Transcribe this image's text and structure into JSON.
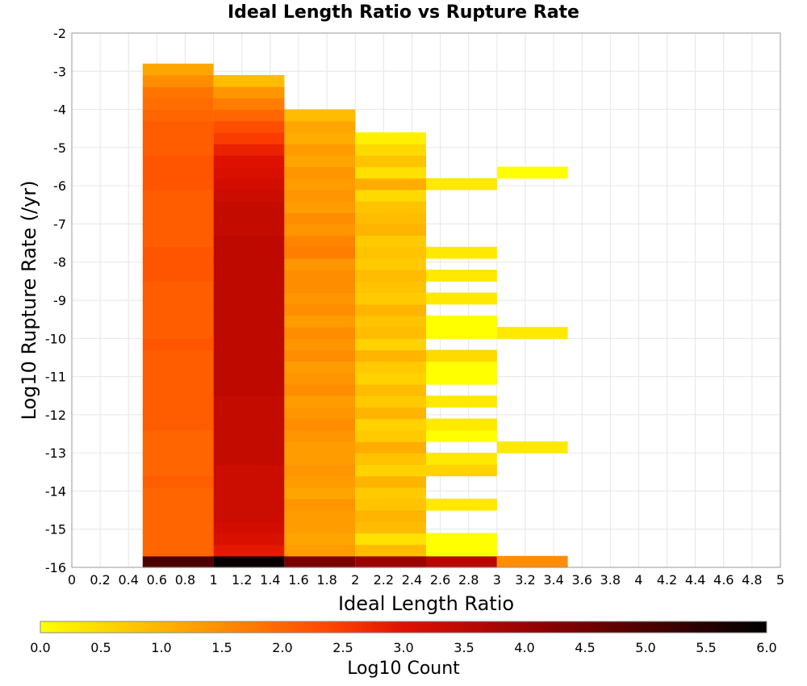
{
  "chart_data": {
    "type": "heatmap",
    "title": "Ideal Length Ratio vs Rupture Rate",
    "xlabel": "Ideal Length Ratio",
    "ylabel": "Log10 Rupture Rate (/yr)",
    "xlim": [
      0,
      5
    ],
    "ylim": [
      -16,
      -2
    ],
    "x_ticks": [
      "0",
      "0.2",
      "0.4",
      "0.6",
      "0.8",
      "1",
      "1.2",
      "1.4",
      "1.6",
      "1.8",
      "2",
      "2.2",
      "2.4",
      "2.6",
      "2.8",
      "3",
      "3.2",
      "3.4",
      "3.6",
      "3.8",
      "4",
      "4.2",
      "4.4",
      "4.6",
      "4.8",
      "5"
    ],
    "y_ticks": [
      "-2",
      "-3",
      "-4",
      "-5",
      "-6",
      "-7",
      "-8",
      "-9",
      "-10",
      "-11",
      "-12",
      "-13",
      "-14",
      "-15",
      "-16"
    ],
    "grid": true,
    "x_bin_width": 0.5,
    "y_bin_height": 0.3,
    "colorscale": {
      "label": "Log10 Count",
      "min": 0,
      "max": 6,
      "ticks": [
        "0.0",
        "0.5",
        "1.0",
        "1.5",
        "2.0",
        "2.5",
        "3.0",
        "3.5",
        "4.0",
        "4.5",
        "5.0",
        "5.5",
        "6.0"
      ],
      "stops": [
        "#ffff00",
        "#ffa500",
        "#ff4500",
        "#e01000",
        "#8b0000",
        "#000000"
      ]
    },
    "columns": [
      {
        "x": 0.75,
        "y_start": -16.0,
        "values": [
          5.0,
          2.0,
          2.0,
          2.0,
          2.0,
          2.0,
          2.0,
          2.1,
          2.0,
          2.0,
          2.0,
          2.0,
          2.1,
          2.1,
          2.1,
          2.1,
          2.1,
          2.1,
          2.1,
          2.2,
          2.1,
          2.1,
          2.1,
          2.1,
          2.1,
          2.2,
          2.2,
          2.2,
          2.1,
          2.1,
          2.1,
          2.1,
          2.1,
          2.2,
          2.2,
          2.2,
          2.1,
          2.1,
          2.1,
          2.0,
          1.9,
          1.8,
          1.5,
          1.2
        ]
      },
      {
        "x": 1.25,
        "y_start": -16.0,
        "values": [
          5.9,
          2.9,
          3.1,
          3.2,
          3.3,
          3.3,
          3.3,
          3.3,
          3.3,
          3.4,
          3.4,
          3.4,
          3.4,
          3.4,
          3.4,
          3.5,
          3.5,
          3.5,
          3.5,
          3.5,
          3.5,
          3.5,
          3.5,
          3.5,
          3.5,
          3.5,
          3.5,
          3.5,
          3.5,
          3.4,
          3.4,
          3.4,
          3.3,
          3.2,
          3.1,
          3.0,
          2.8,
          2.5,
          2.3,
          2.0,
          1.7,
          1.4,
          0.9
        ]
      },
      {
        "x": 1.75,
        "y_start": -16.0,
        "values": [
          4.4,
          1.3,
          1.2,
          1.3,
          1.3,
          1.4,
          1.2,
          1.3,
          1.4,
          1.3,
          1.3,
          1.4,
          1.5,
          1.4,
          1.3,
          1.5,
          1.4,
          1.3,
          1.5,
          1.4,
          1.5,
          1.3,
          1.5,
          1.4,
          1.5,
          1.5,
          1.4,
          1.7,
          1.6,
          1.4,
          1.5,
          1.3,
          1.4,
          1.3,
          1.4,
          1.2,
          1.3,
          1.1,
          1.2,
          0.9
        ]
      },
      {
        "x": 2.25,
        "y_start": -16.0,
        "values": [
          4.0,
          0.9,
          0.4,
          0.9,
          1.0,
          0.8,
          0.7,
          1.0,
          0.6,
          0.8,
          1.1,
          0.7,
          0.6,
          1.0,
          0.7,
          0.9,
          0.6,
          0.7,
          1.0,
          0.6,
          0.9,
          0.8,
          1.0,
          0.7,
          0.8,
          0.9,
          0.7,
          0.8,
          0.7,
          1.0,
          0.9,
          0.8,
          0.5,
          1.1,
          0.4,
          0.8,
          0.5,
          0.2
        ]
      },
      {
        "x": 2.75,
        "cells": [
          {
            "y": -15.85,
            "v": 3.6
          },
          {
            "y": -15.55,
            "v": 0.0
          },
          {
            "y": -15.25,
            "v": 0.0
          },
          {
            "y": -14.35,
            "v": 0.3
          },
          {
            "y": -13.45,
            "v": 0.6
          },
          {
            "y": -13.15,
            "v": 0.3
          },
          {
            "y": -12.55,
            "v": 0.0
          },
          {
            "y": -12.25,
            "v": 0.3
          },
          {
            "y": -11.65,
            "v": 0.3
          },
          {
            "y": -11.05,
            "v": 0.0
          },
          {
            "y": -10.75,
            "v": 0.0
          },
          {
            "y": -10.45,
            "v": 0.5
          },
          {
            "y": -9.85,
            "v": 0.0
          },
          {
            "y": -9.55,
            "v": 0.0
          },
          {
            "y": -8.95,
            "v": 0.3
          },
          {
            "y": -8.35,
            "v": 0.3
          },
          {
            "y": -7.75,
            "v": 0.3
          },
          {
            "y": -5.95,
            "v": 0.3
          }
        ]
      },
      {
        "x": 3.25,
        "cells": [
          {
            "y": -15.85,
            "v": 1.5
          },
          {
            "y": -12.85,
            "v": 0.3
          },
          {
            "y": -9.85,
            "v": 0.3
          },
          {
            "y": -5.65,
            "v": 0.0
          }
        ]
      }
    ]
  }
}
